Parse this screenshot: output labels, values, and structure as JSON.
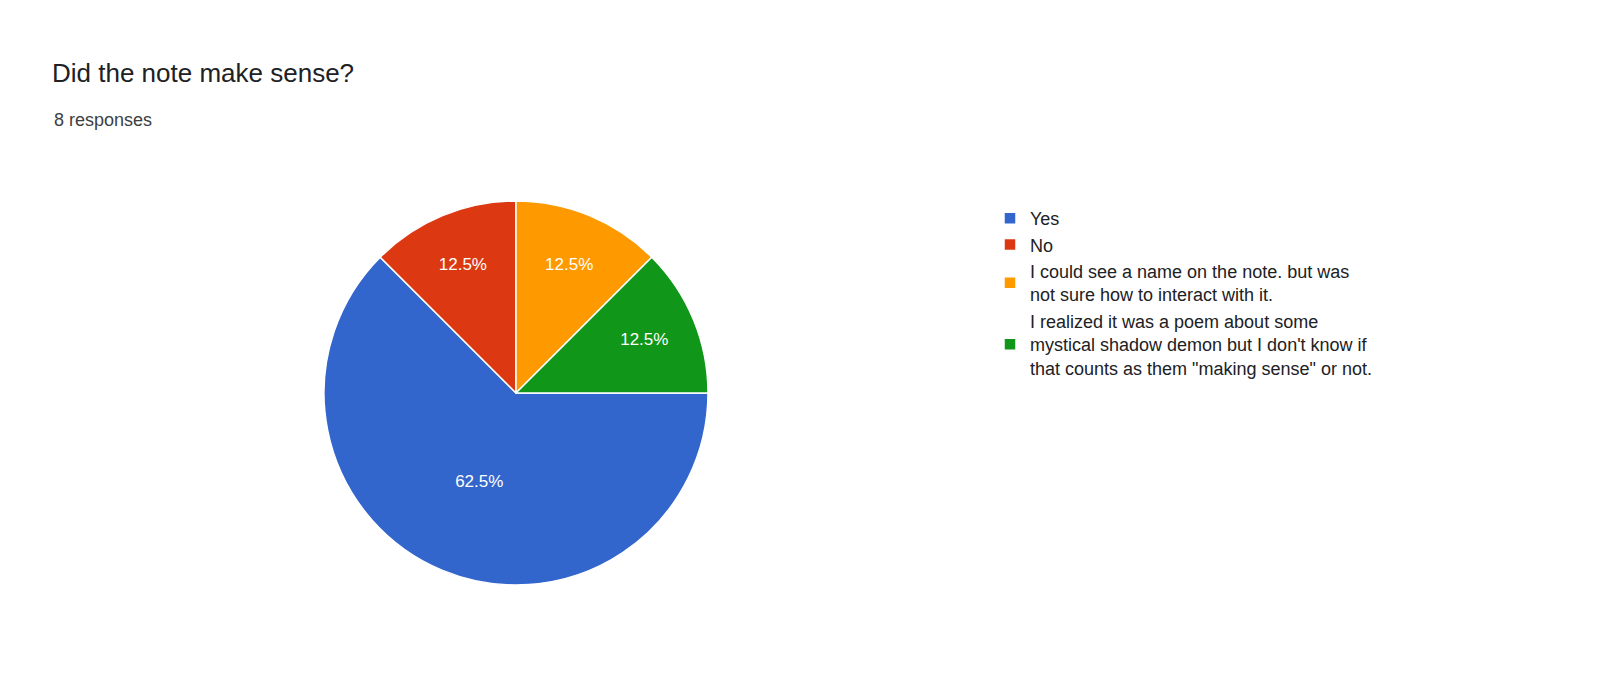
{
  "chart_data": {
    "type": "pie",
    "title": "Did the note make sense?",
    "subtitle": "8 responses",
    "categories": [
      "Yes",
      "No",
      "I could see a name on the note. but was not sure how to interact with it.",
      "I realized it was a poem about some mystical shadow demon but I don't know if that counts as them \"making sense\" or not."
    ],
    "values": [
      62.5,
      12.5,
      12.5,
      12.5
    ],
    "value_labels": [
      "62.5%",
      "12.5%",
      "12.5%",
      "12.5%"
    ],
    "colors": [
      "#3366cc",
      "#dc3912",
      "#ff9900",
      "#109618"
    ],
    "data_labels": true,
    "legend": "right"
  }
}
